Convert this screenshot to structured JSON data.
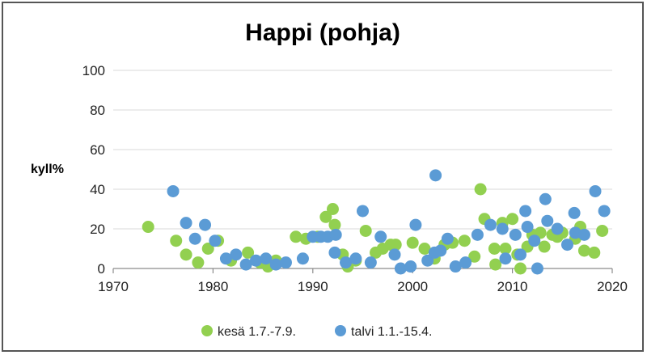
{
  "chart_data": {
    "type": "scatter",
    "title": "Happi (pohja)",
    "xlabel": "",
    "ylabel": "kyll%",
    "xlim": [
      1970,
      2020
    ],
    "ylim": [
      0,
      100
    ],
    "x_ticks": [
      1970,
      1980,
      1990,
      2000,
      2010,
      2020
    ],
    "y_ticks": [
      0,
      20,
      40,
      60,
      80,
      100
    ],
    "grid": "horizontal",
    "legend_position": "bottom",
    "series": [
      {
        "name": "kesä 1.7.-7.9.",
        "color": "#92D050",
        "points": [
          [
            1973.5,
            21
          ],
          [
            1976.3,
            14
          ],
          [
            1977.3,
            7
          ],
          [
            1978.5,
            3
          ],
          [
            1979.5,
            10
          ],
          [
            1980.5,
            14
          ],
          [
            1981.8,
            4
          ],
          [
            1983.5,
            8
          ],
          [
            1984.7,
            3
          ],
          [
            1985.5,
            1
          ],
          [
            1986.3,
            4
          ],
          [
            1988.3,
            16
          ],
          [
            1989.3,
            15
          ],
          [
            1990.5,
            16
          ],
          [
            1991.3,
            26
          ],
          [
            1992,
            30
          ],
          [
            1992.2,
            22
          ],
          [
            1993,
            7
          ],
          [
            1993.5,
            1
          ],
          [
            1994.3,
            4
          ],
          [
            1995.3,
            19
          ],
          [
            1996.3,
            8
          ],
          [
            1997,
            10
          ],
          [
            1997.8,
            12
          ],
          [
            1998.3,
            12
          ],
          [
            2000,
            13
          ],
          [
            2001.2,
            10
          ],
          [
            2002.2,
            5
          ],
          [
            2003.2,
            12
          ],
          [
            2004,
            13
          ],
          [
            2005.2,
            14
          ],
          [
            2006.2,
            6
          ],
          [
            2006.8,
            40
          ],
          [
            2007.2,
            25
          ],
          [
            2008.2,
            10
          ],
          [
            2008.3,
            2
          ],
          [
            2009,
            23
          ],
          [
            2009.3,
            10
          ],
          [
            2010,
            25
          ],
          [
            2010.5,
            7
          ],
          [
            2010.8,
            0
          ],
          [
            2011.5,
            11
          ],
          [
            2012,
            17
          ],
          [
            2012.8,
            18
          ],
          [
            2013.2,
            11
          ],
          [
            2014,
            17
          ],
          [
            2014.5,
            16
          ],
          [
            2015,
            18
          ],
          [
            2016.3,
            15
          ],
          [
            2016.8,
            21
          ],
          [
            2017.2,
            9
          ],
          [
            2018.2,
            8
          ],
          [
            2019,
            19
          ]
        ]
      },
      {
        "name": "talvi 1.1.-15.4.",
        "color": "#5B9BD5",
        "points": [
          [
            1976,
            39
          ],
          [
            1977.3,
            23
          ],
          [
            1978.2,
            15
          ],
          [
            1979.2,
            22
          ],
          [
            1980.2,
            14
          ],
          [
            1981.3,
            5
          ],
          [
            1982.3,
            7
          ],
          [
            1983.3,
            2
          ],
          [
            1984.3,
            4
          ],
          [
            1985.3,
            5
          ],
          [
            1986.3,
            2
          ],
          [
            1987.3,
            3
          ],
          [
            1989,
            5
          ],
          [
            1990,
            16
          ],
          [
            1990.8,
            16
          ],
          [
            1991.5,
            16
          ],
          [
            1992.3,
            17
          ],
          [
            1992.2,
            8
          ],
          [
            1993.3,
            3
          ],
          [
            1994.3,
            5
          ],
          [
            1995,
            29
          ],
          [
            1995.8,
            3
          ],
          [
            1996.8,
            16
          ],
          [
            1998.2,
            7
          ],
          [
            1998.8,
            0
          ],
          [
            1999.8,
            1
          ],
          [
            2000.3,
            22
          ],
          [
            2001.5,
            4
          ],
          [
            2002.2,
            8
          ],
          [
            2002.3,
            47
          ],
          [
            2002.8,
            9
          ],
          [
            2003.5,
            15
          ],
          [
            2004.3,
            1
          ],
          [
            2005.3,
            3
          ],
          [
            2006.5,
            17
          ],
          [
            2007.8,
            22
          ],
          [
            2009,
            20
          ],
          [
            2009.3,
            5
          ],
          [
            2010.3,
            17
          ],
          [
            2010.8,
            7
          ],
          [
            2011.3,
            29
          ],
          [
            2011.5,
            21
          ],
          [
            2012.2,
            14
          ],
          [
            2012.5,
            0
          ],
          [
            2013.3,
            35
          ],
          [
            2013.5,
            24
          ],
          [
            2014.5,
            20
          ],
          [
            2015.5,
            12
          ],
          [
            2016.2,
            28
          ],
          [
            2016.3,
            18
          ],
          [
            2017.2,
            17
          ],
          [
            2018.3,
            39
          ],
          [
            2019.2,
            29
          ]
        ]
      }
    ]
  }
}
